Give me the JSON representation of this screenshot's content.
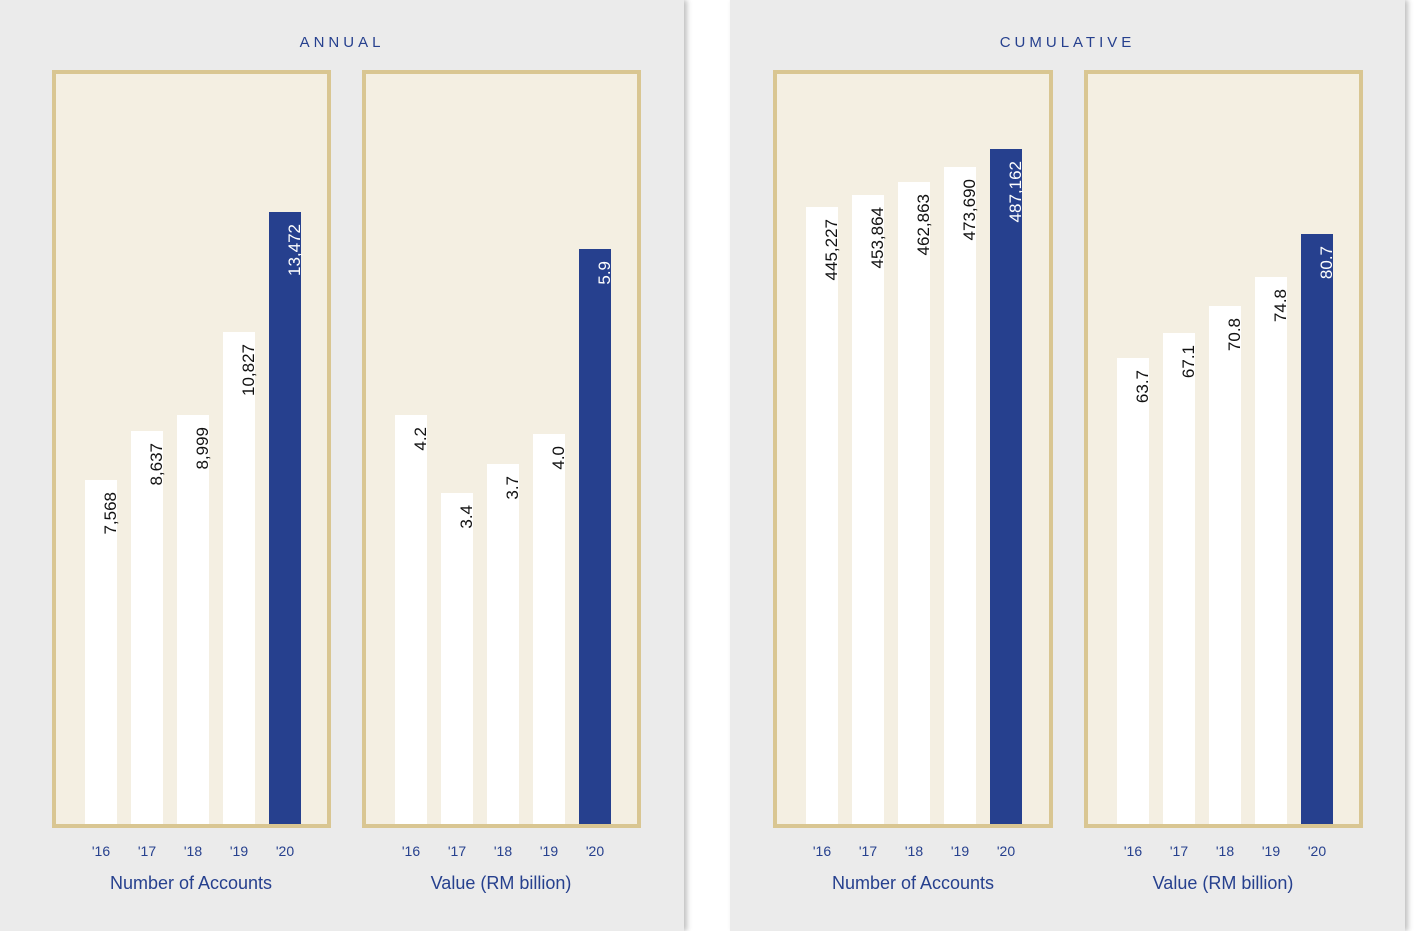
{
  "colors": {
    "panel_bg": "#ebebeb",
    "chart_bg": "#f4efe2",
    "chart_border": "#d9c692",
    "accent": "#26408e",
    "bar_default": "#ffffff"
  },
  "panels": [
    {
      "title": "ANNUAL"
    },
    {
      "title": "CUMULATIVE"
    }
  ],
  "chart_data": [
    {
      "type": "bar",
      "panel": "ANNUAL",
      "xlabel": "Number of Accounts",
      "categories": [
        "'16",
        "'17",
        "'18",
        "'19",
        "'20"
      ],
      "values": [
        7568,
        8637,
        8999,
        10827,
        13472
      ],
      "value_labels": [
        "7,568",
        "8,637",
        "8,999",
        "10,827",
        "13,472"
      ],
      "highlight_index": 4,
      "ylim": [
        0,
        16500
      ]
    },
    {
      "type": "bar",
      "panel": "ANNUAL",
      "xlabel": "Value (RM billion)",
      "categories": [
        "'16",
        "'17",
        "'18",
        "'19",
        "'20"
      ],
      "values": [
        4.2,
        3.4,
        3.7,
        4.0,
        5.9
      ],
      "value_labels": [
        "4.2",
        "3.4",
        "3.7",
        "4.0",
        "5.9"
      ],
      "highlight_index": 4,
      "ylim": [
        0,
        7.7
      ]
    },
    {
      "type": "bar",
      "panel": "CUMULATIVE",
      "xlabel": "Number of Accounts",
      "categories": [
        "'16",
        "'17",
        "'18",
        "'19",
        "'20"
      ],
      "values": [
        445227,
        453864,
        462863,
        473690,
        487162
      ],
      "value_labels": [
        "445,227",
        "453,864",
        "462,863",
        "473,690",
        "487,162"
      ],
      "highlight_index": 4,
      "ylim": [
        0,
        541000
      ]
    },
    {
      "type": "bar",
      "panel": "CUMULATIVE",
      "xlabel": "Value (RM billion)",
      "categories": [
        "'16",
        "'17",
        "'18",
        "'19",
        "'20"
      ],
      "values": [
        63.7,
        67.1,
        70.8,
        74.8,
        80.7
      ],
      "value_labels": [
        "63.7",
        "67.1",
        "70.8",
        "74.8",
        "80.7"
      ],
      "highlight_index": 4,
      "ylim": [
        0,
        102.5
      ]
    }
  ]
}
